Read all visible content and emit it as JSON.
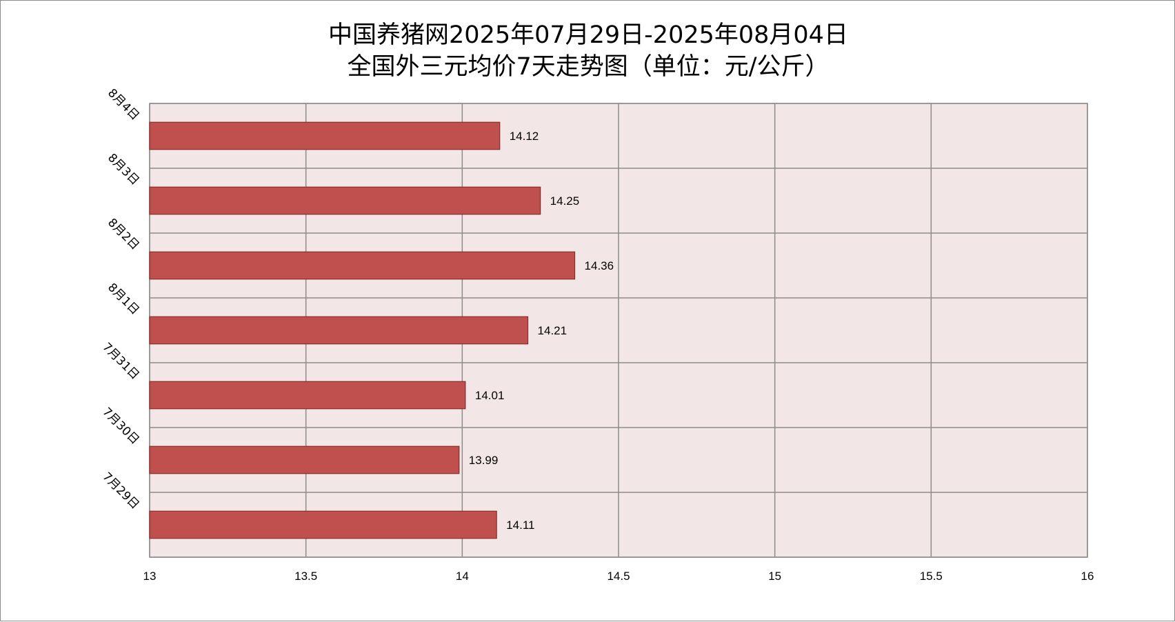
{
  "chart_data": {
    "type": "bar",
    "orientation": "horizontal",
    "title": [
      "中国养猪网2025年07月29日-2025年08月04日",
      "全国外三元均价7天走势图（单位：元/公斤）"
    ],
    "categories": [
      "8月4日",
      "8月3日",
      "8月2日",
      "8月1日",
      "7月31日",
      "7月30日",
      "7月29日"
    ],
    "values": [
      14.12,
      14.25,
      14.36,
      14.21,
      14.01,
      13.99,
      14.11
    ],
    "x_ticks": [
      "13",
      "13.5",
      "14",
      "14.5",
      "15",
      "15.5",
      "16"
    ],
    "xlim": [
      13,
      16
    ],
    "grid": true,
    "data_labels": true,
    "legend": "none",
    "colors": {
      "bar_fill": "#c0504d",
      "bar_stroke": "#8b2c2a",
      "plot_background": "#f2e6e6",
      "grid": "#8c8c8c"
    }
  }
}
